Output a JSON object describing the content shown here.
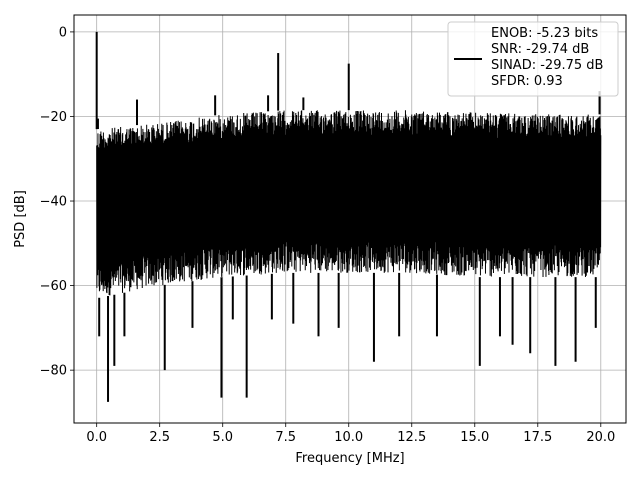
{
  "chart_data": {
    "type": "line",
    "title": "",
    "xlabel": "Frequency [MHz]",
    "ylabel": "PSD [dB]",
    "xlim": [
      -0.9,
      21.0
    ],
    "ylim": [
      -92.5,
      4.0
    ],
    "xticks": [
      0.0,
      2.5,
      5.0,
      7.5,
      10.0,
      12.5,
      15.0,
      17.5,
      20.0
    ],
    "xtick_labels": [
      "0.0",
      "2.5",
      "5.0",
      "7.5",
      "10.0",
      "12.5",
      "15.0",
      "17.5",
      "20.0"
    ],
    "yticks": [
      0,
      -20,
      -40,
      -60,
      -80
    ],
    "ytick_labels": [
      "0",
      "−20",
      "−40",
      "−60",
      "−80"
    ],
    "grid": true,
    "legend": {
      "placement": "top-right",
      "entries": [
        "ENOB: -5.23 bits",
        "SNR: -29.74 dB",
        "SINAD: -29.75 dB",
        "SFDR: 0.93"
      ]
    },
    "series": [
      {
        "color": "#000000",
        "description_free": true,
        "x_range": [
          0.0,
          20.0
        ],
        "noise_floor_upper": [
          [
            0.0,
            -23
          ],
          [
            2.5,
            -21.5
          ],
          [
            5.0,
            -19.5
          ],
          [
            7.5,
            -18.5
          ],
          [
            10.0,
            -18.5
          ],
          [
            12.5,
            -18.5
          ],
          [
            15.0,
            -19
          ],
          [
            17.5,
            -19.5
          ],
          [
            20.0,
            -19.5
          ]
        ],
        "noise_floor_lower": [
          [
            0.0,
            -63
          ],
          [
            2.5,
            -60
          ],
          [
            5.0,
            -58
          ],
          [
            7.5,
            -57
          ],
          [
            10.0,
            -57
          ],
          [
            12.5,
            -57
          ],
          [
            15.0,
            -58
          ],
          [
            17.5,
            -58
          ],
          [
            20.0,
            -58
          ]
        ],
        "peaks": [
          [
            0.0,
            0.0
          ],
          [
            0.05,
            -20.5
          ],
          [
            1.6,
            -16
          ],
          [
            4.7,
            -15
          ],
          [
            6.8,
            -15
          ],
          [
            7.2,
            -5
          ],
          [
            8.2,
            -15.5
          ],
          [
            10.0,
            -7.5
          ],
          [
            19.95,
            -14
          ]
        ],
        "dips": [
          [
            0.1,
            -72
          ],
          [
            0.45,
            -87.5
          ],
          [
            0.7,
            -79
          ],
          [
            1.1,
            -72
          ],
          [
            2.7,
            -80
          ],
          [
            3.8,
            -70
          ],
          [
            4.95,
            -86.5
          ],
          [
            5.4,
            -68
          ],
          [
            5.95,
            -86.5
          ],
          [
            6.95,
            -68
          ],
          [
            7.8,
            -69
          ],
          [
            8.8,
            -72
          ],
          [
            9.6,
            -70
          ],
          [
            11.0,
            -78
          ],
          [
            12.0,
            -72
          ],
          [
            13.5,
            -72
          ],
          [
            15.2,
            -79
          ],
          [
            16.0,
            -72
          ],
          [
            16.5,
            -74
          ],
          [
            17.2,
            -76
          ],
          [
            18.2,
            -79
          ],
          [
            19.0,
            -78
          ],
          [
            19.8,
            -70
          ]
        ]
      }
    ]
  }
}
